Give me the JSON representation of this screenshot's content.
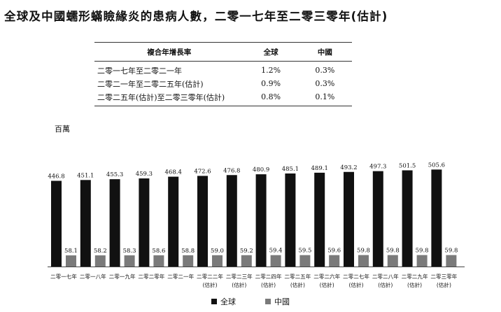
{
  "title": "全球及中國蠕形蟎瞼緣炎的患病人數，二零一七年至二零三零年(估計)",
  "cagr_table": {
    "headers": [
      "複合年增長率",
      "全球",
      "中國"
    ],
    "rows": [
      [
        "二零一七年至二零二一年",
        "1.2%",
        "0.3%"
      ],
      [
        "二零二一年至二零二五年(估計)",
        "0.9%",
        "0.3%"
      ],
      [
        "二零二五年(估計)至二零三零年(估計)",
        "0.8%",
        "0.1%"
      ]
    ]
  },
  "chart_data": {
    "type": "bar",
    "unit_label": "百萬",
    "categories": [
      [
        "二零一七年"
      ],
      [
        "二零一八年"
      ],
      [
        "二零一九年"
      ],
      [
        "二零二零年"
      ],
      [
        "二零二一年"
      ],
      [
        "二零二二年",
        "(估計)"
      ],
      [
        "二零二三年",
        "(估計)"
      ],
      [
        "二零二四年",
        "(估計)"
      ],
      [
        "二零二五年",
        "(估計)"
      ],
      [
        "二零二六年",
        "(估計)"
      ],
      [
        "二零二七年",
        "(估計)"
      ],
      [
        "二零二八年",
        "(估計)"
      ],
      [
        "二零二九年",
        "(估計)"
      ],
      [
        "二零三零年",
        "(估計)"
      ]
    ],
    "series": [
      {
        "name": "全球",
        "color": "#111111",
        "values": [
          446.8,
          451.1,
          455.3,
          459.3,
          468.4,
          472.6,
          476.8,
          480.9,
          485.1,
          489.1,
          493.2,
          497.3,
          501.5,
          505.6
        ]
      },
      {
        "name": "中國",
        "color": "#7a7a7a",
        "values": [
          58.1,
          58.2,
          58.3,
          58.6,
          58.8,
          59.0,
          59.2,
          59.4,
          59.5,
          59.6,
          59.8,
          59.8,
          59.8,
          59.8
        ]
      }
    ],
    "legend_position": "bottom-center",
    "grid": false
  }
}
